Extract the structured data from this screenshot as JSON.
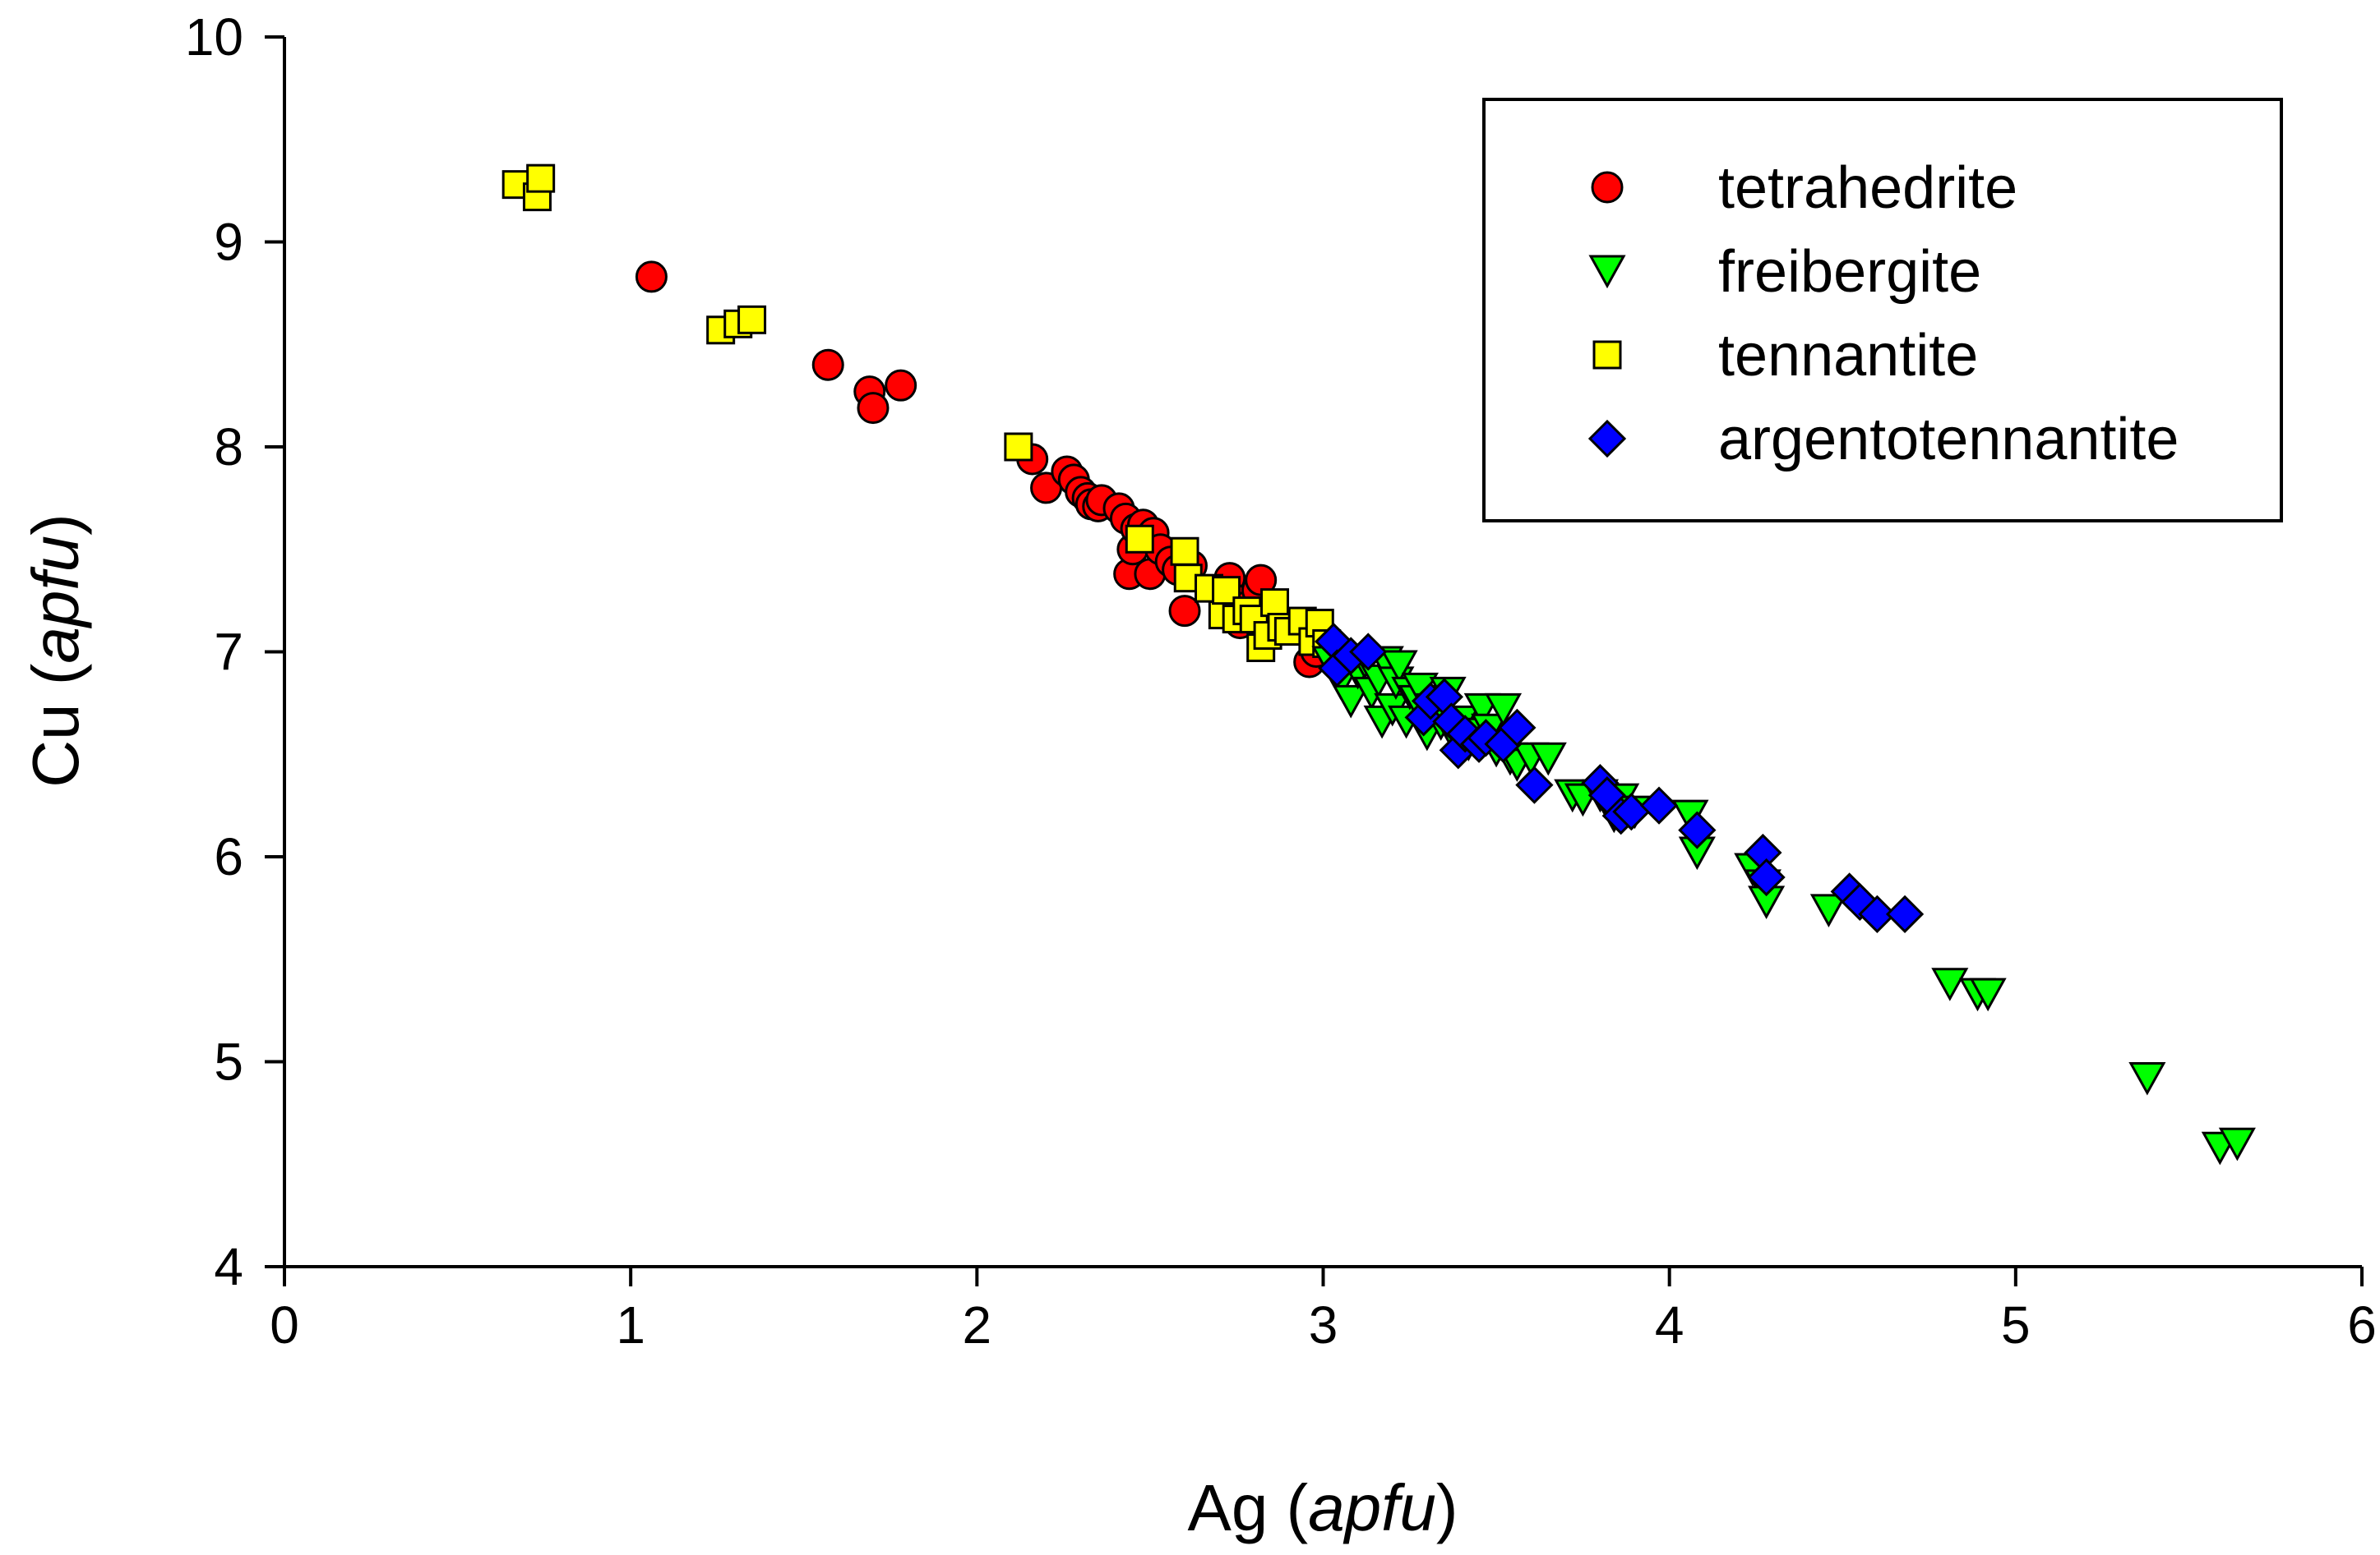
{
  "chart_data": {
    "type": "scatter",
    "title": "",
    "xlabel": {
      "main": "Ag (",
      "italic": "apfu",
      "end": ")"
    },
    "ylabel": {
      "main": "Cu (",
      "italic": "apfu",
      "end": ")"
    },
    "xlim": [
      0,
      6
    ],
    "ylim": [
      4,
      10
    ],
    "x_ticks": [
      0,
      1,
      2,
      3,
      4,
      5,
      6
    ],
    "y_ticks": [
      4,
      5,
      6,
      7,
      8,
      9,
      10
    ],
    "x_tick_labels": [
      "0",
      "1",
      "2",
      "3",
      "4",
      "5",
      "6"
    ],
    "y_tick_labels": [
      "4",
      "5",
      "6",
      "7",
      "8",
      "9",
      "10"
    ],
    "grid": false,
    "legend_position": "top-right",
    "series": [
      {
        "name": "tetrahedrite",
        "marker": "circle",
        "color": "#ff0000",
        "points": [
          [
            1.06,
            8.83
          ],
          [
            1.57,
            8.4
          ],
          [
            1.69,
            8.27
          ],
          [
            1.7,
            8.19
          ],
          [
            1.78,
            8.3
          ],
          [
            2.16,
            7.94
          ],
          [
            2.2,
            7.8
          ],
          [
            2.26,
            7.88
          ],
          [
            2.28,
            7.84
          ],
          [
            2.3,
            7.78
          ],
          [
            2.32,
            7.75
          ],
          [
            2.33,
            7.72
          ],
          [
            2.35,
            7.71
          ],
          [
            2.36,
            7.74
          ],
          [
            2.41,
            7.7
          ],
          [
            2.43,
            7.65
          ],
          [
            2.44,
            7.38
          ],
          [
            2.45,
            7.5
          ],
          [
            2.46,
            7.6
          ],
          [
            2.48,
            7.62
          ],
          [
            2.5,
            7.38
          ],
          [
            2.51,
            7.58
          ],
          [
            2.53,
            7.5
          ],
          [
            2.56,
            7.44
          ],
          [
            2.58,
            7.4
          ],
          [
            2.6,
            7.2
          ],
          [
            2.62,
            7.42
          ],
          [
            2.7,
            7.3
          ],
          [
            2.73,
            7.36
          ],
          [
            2.74,
            7.26
          ],
          [
            2.76,
            7.14
          ],
          [
            2.78,
            7.22
          ],
          [
            2.81,
            7.3
          ],
          [
            2.82,
            7.35
          ],
          [
            2.85,
            7.18
          ],
          [
            2.96,
            6.95
          ],
          [
            2.98,
            7.0
          ]
        ]
      },
      {
        "name": "freibergite",
        "marker": "triangle-down",
        "color": "#00ff00",
        "points": [
          [
            3.02,
            6.95
          ],
          [
            3.05,
            6.85
          ],
          [
            3.08,
            6.76
          ],
          [
            3.1,
            6.9
          ],
          [
            3.12,
            6.95
          ],
          [
            3.14,
            6.8
          ],
          [
            3.16,
            6.86
          ],
          [
            3.17,
            6.66
          ],
          [
            3.18,
            6.95
          ],
          [
            3.2,
            6.72
          ],
          [
            3.21,
            6.85
          ],
          [
            3.22,
            6.93
          ],
          [
            3.24,
            6.66
          ],
          [
            3.25,
            6.8
          ],
          [
            3.27,
            6.76
          ],
          [
            3.28,
            6.82
          ],
          [
            3.3,
            6.6
          ],
          [
            3.32,
            6.72
          ],
          [
            3.34,
            6.65
          ],
          [
            3.36,
            6.8
          ],
          [
            3.38,
            6.58
          ],
          [
            3.4,
            6.66
          ],
          [
            3.42,
            6.55
          ],
          [
            3.44,
            6.6
          ],
          [
            3.46,
            6.72
          ],
          [
            3.48,
            6.62
          ],
          [
            3.5,
            6.52
          ],
          [
            3.52,
            6.72
          ],
          [
            3.54,
            6.48
          ],
          [
            3.56,
            6.45
          ],
          [
            3.6,
            6.48
          ],
          [
            3.65,
            6.48
          ],
          [
            3.72,
            6.3
          ],
          [
            3.75,
            6.28
          ],
          [
            3.8,
            6.3
          ],
          [
            3.84,
            6.2
          ],
          [
            3.86,
            6.28
          ],
          [
            3.9,
            6.22
          ],
          [
            4.06,
            6.2
          ],
          [
            4.08,
            6.02
          ],
          [
            4.24,
            5.94
          ],
          [
            4.27,
            5.86
          ],
          [
            4.28,
            5.78
          ],
          [
            4.46,
            5.74
          ],
          [
            4.81,
            5.38
          ],
          [
            4.89,
            5.33
          ],
          [
            4.92,
            5.33
          ],
          [
            5.38,
            4.92
          ],
          [
            5.59,
            4.58
          ],
          [
            5.64,
            4.6
          ]
        ]
      },
      {
        "name": "tennantite",
        "marker": "square",
        "color": "#ffff00",
        "points": [
          [
            0.67,
            9.28
          ],
          [
            0.73,
            9.22
          ],
          [
            0.74,
            9.31
          ],
          [
            1.26,
            8.57
          ],
          [
            1.31,
            8.6
          ],
          [
            1.35,
            8.62
          ],
          [
            2.12,
            8.0
          ],
          [
            2.47,
            7.55
          ],
          [
            2.6,
            7.49
          ],
          [
            2.61,
            7.36
          ],
          [
            2.67,
            7.31
          ],
          [
            2.71,
            7.18
          ],
          [
            2.72,
            7.3
          ],
          [
            2.75,
            7.16
          ],
          [
            2.78,
            7.2
          ],
          [
            2.8,
            7.16
          ],
          [
            2.82,
            7.02
          ],
          [
            2.84,
            7.08
          ],
          [
            2.86,
            7.24
          ],
          [
            2.88,
            7.12
          ],
          [
            2.9,
            7.1
          ],
          [
            2.94,
            7.15
          ],
          [
            2.97,
            7.05
          ],
          [
            2.99,
            7.14
          ],
          [
            3.01,
            7.04
          ]
        ]
      },
      {
        "name": "argentotennantite",
        "marker": "diamond",
        "color": "#0000ff",
        "points": [
          [
            3.03,
            7.05
          ],
          [
            3.04,
            6.92
          ],
          [
            3.08,
            6.98
          ],
          [
            3.13,
            7.0
          ],
          [
            3.29,
            6.68
          ],
          [
            3.31,
            6.76
          ],
          [
            3.35,
            6.78
          ],
          [
            3.37,
            6.66
          ],
          [
            3.39,
            6.52
          ],
          [
            3.41,
            6.6
          ],
          [
            3.45,
            6.55
          ],
          [
            3.47,
            6.58
          ],
          [
            3.52,
            6.55
          ],
          [
            3.56,
            6.63
          ],
          [
            3.61,
            6.35
          ],
          [
            3.8,
            6.36
          ],
          [
            3.82,
            6.3
          ],
          [
            3.86,
            6.2
          ],
          [
            3.89,
            6.22
          ],
          [
            3.97,
            6.25
          ],
          [
            4.08,
            6.13
          ],
          [
            4.27,
            6.02
          ],
          [
            4.28,
            5.9
          ],
          [
            4.52,
            5.83
          ],
          [
            4.55,
            5.78
          ],
          [
            4.6,
            5.72
          ],
          [
            4.68,
            5.72
          ]
        ]
      }
    ]
  }
}
